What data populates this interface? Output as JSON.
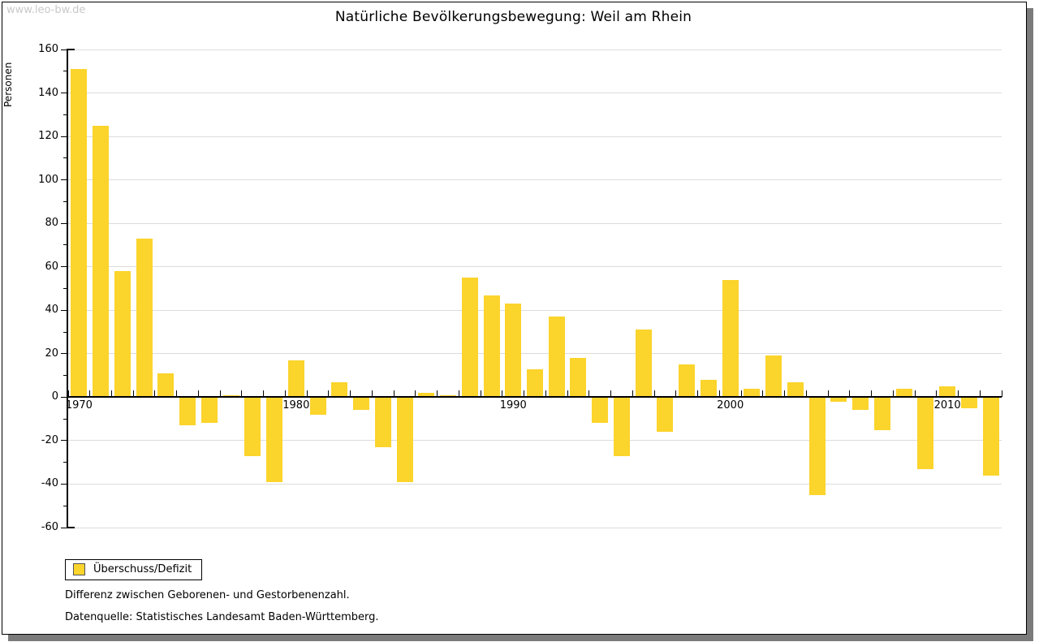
{
  "watermark": "www.leo-bw.de",
  "title": "Natürliche Bevölkerungsbewegung: Weil am Rhein",
  "ylabel": "Personen",
  "legend": {
    "label": "Überschuss/Defizit"
  },
  "footnotes": [
    "Differenz zwischen Geborenen- und Gestorbenenzahl.",
    "Datenquelle: Statistisches Landesamt Baden-Württemberg."
  ],
  "colors": {
    "bar": "#fbd42c",
    "grid": "#dcdcdc",
    "axis": "#000000",
    "watermark": "#c9c9c9",
    "frame_shadow": "#7b7b7b"
  },
  "chart_data": {
    "type": "bar",
    "title": "Natürliche Bevölkerungsbewegung: Weil am Rhein",
    "series_name": "Überschuss/Defizit",
    "xlabel": "",
    "ylabel": "Personen",
    "ylim": [
      -60,
      160
    ],
    "y_tick_step": 20,
    "y_minor_step": 10,
    "y_ticks": [
      160,
      140,
      120,
      100,
      80,
      60,
      40,
      20,
      0,
      -20,
      -40,
      -60
    ],
    "x_tick_labels": [
      "1970",
      "1980",
      "1990",
      "2000",
      "2010"
    ],
    "grid": true,
    "legend_position": "bottom-left",
    "x": [
      1970,
      1971,
      1972,
      1973,
      1974,
      1975,
      1976,
      1977,
      1978,
      1979,
      1980,
      1981,
      1982,
      1983,
      1984,
      1985,
      1986,
      1987,
      1988,
      1989,
      1990,
      1991,
      1992,
      1993,
      1994,
      1995,
      1996,
      1997,
      1998,
      1999,
      2000,
      2001,
      2002,
      2003,
      2004,
      2005,
      2006,
      2007,
      2008,
      2009,
      2010,
      2011,
      2012
    ],
    "values": [
      151,
      125,
      58,
      73,
      11,
      -13,
      -12,
      1,
      -27,
      -39,
      17,
      -8,
      7,
      -6,
      -23,
      -39,
      2,
      1,
      55,
      47,
      43,
      13,
      37,
      18,
      -12,
      -27,
      31,
      -16,
      15,
      8,
      54,
      4,
      19,
      7,
      -45,
      -2,
      -6,
      -15,
      4,
      -33,
      5,
      -5,
      -36
    ]
  }
}
